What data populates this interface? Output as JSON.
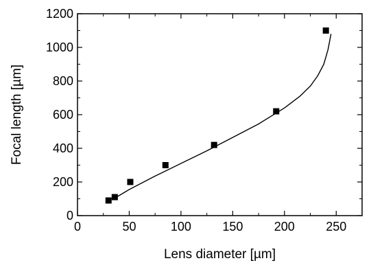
{
  "chart_data": {
    "type": "scatter",
    "xlabel": "Lens diameter [µm]",
    "ylabel": "Focal length [µm]",
    "xlim": [
      0,
      275
    ],
    "ylim": [
      0,
      1200
    ],
    "xticks": [
      0,
      50,
      100,
      150,
      200,
      250
    ],
    "yticks": [
      0,
      200,
      400,
      600,
      800,
      1000,
      1200
    ],
    "grid": false,
    "series": [
      {
        "kind": "points",
        "marker": "square",
        "x": [
          30,
          36,
          51,
          85,
          132,
          192,
          240
        ],
        "y": [
          90,
          110,
          200,
          300,
          420,
          620,
          1100
        ]
      },
      {
        "kind": "fit-line",
        "x": [
          35,
          50,
          75,
          100,
          125,
          150,
          175,
          200,
          215,
          225,
          232,
          238,
          242,
          245
        ],
        "y": [
          100,
          155,
          235,
          310,
          385,
          465,
          545,
          640,
          710,
          770,
          830,
          900,
          985,
          1080
        ]
      }
    ]
  }
}
